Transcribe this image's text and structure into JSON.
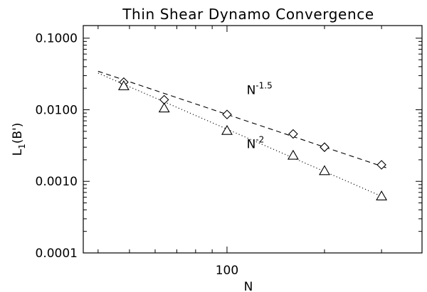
{
  "chart_data": {
    "type": "scatter",
    "title": "Thin Shear Dynamo Convergence",
    "xlabel": "N",
    "ylabel": "L",
    "ylabel_sub": "1",
    "ylabel_arg": "(B')",
    "xscale": "log",
    "yscale": "log",
    "xlim": [
      36,
      400
    ],
    "ylim": [
      0.0001,
      0.15
    ],
    "x_ticks": [
      {
        "value": 100,
        "label": "100"
      }
    ],
    "y_ticks": [
      {
        "value": 0.1,
        "label": "0.1000"
      },
      {
        "value": 0.01,
        "label": "0.0100"
      },
      {
        "value": 0.001,
        "label": "0.0010"
      },
      {
        "value": 0.0001,
        "label": "0.0001"
      }
    ],
    "grid": false,
    "series": [
      {
        "marker": "diamond",
        "x": [
          48,
          64,
          100,
          160,
          200,
          300
        ],
        "y": [
          0.0243,
          0.0138,
          0.0086,
          0.0046,
          0.003,
          0.0017
        ],
        "fit_line": {
          "style": "dashed",
          "x": [
            40,
            310
          ],
          "y": [
            0.0345,
            0.00155
          ]
        }
      },
      {
        "marker": "triangle",
        "x": [
          48,
          64,
          100,
          160,
          200,
          300
        ],
        "y": [
          0.0215,
          0.0105,
          0.0051,
          0.0023,
          0.0014,
          0.00062
        ],
        "fit_line": {
          "style": "dotted",
          "x": [
            40,
            310
          ],
          "y": [
            0.0325,
            0.00058
          ]
        }
      }
    ],
    "annotations": [
      {
        "base": "N",
        "exponent": "-1.5",
        "x": 115,
        "y": 0.0165
      },
      {
        "base": "N",
        "exponent": "-2",
        "x": 115,
        "y": 0.0029
      }
    ]
  }
}
